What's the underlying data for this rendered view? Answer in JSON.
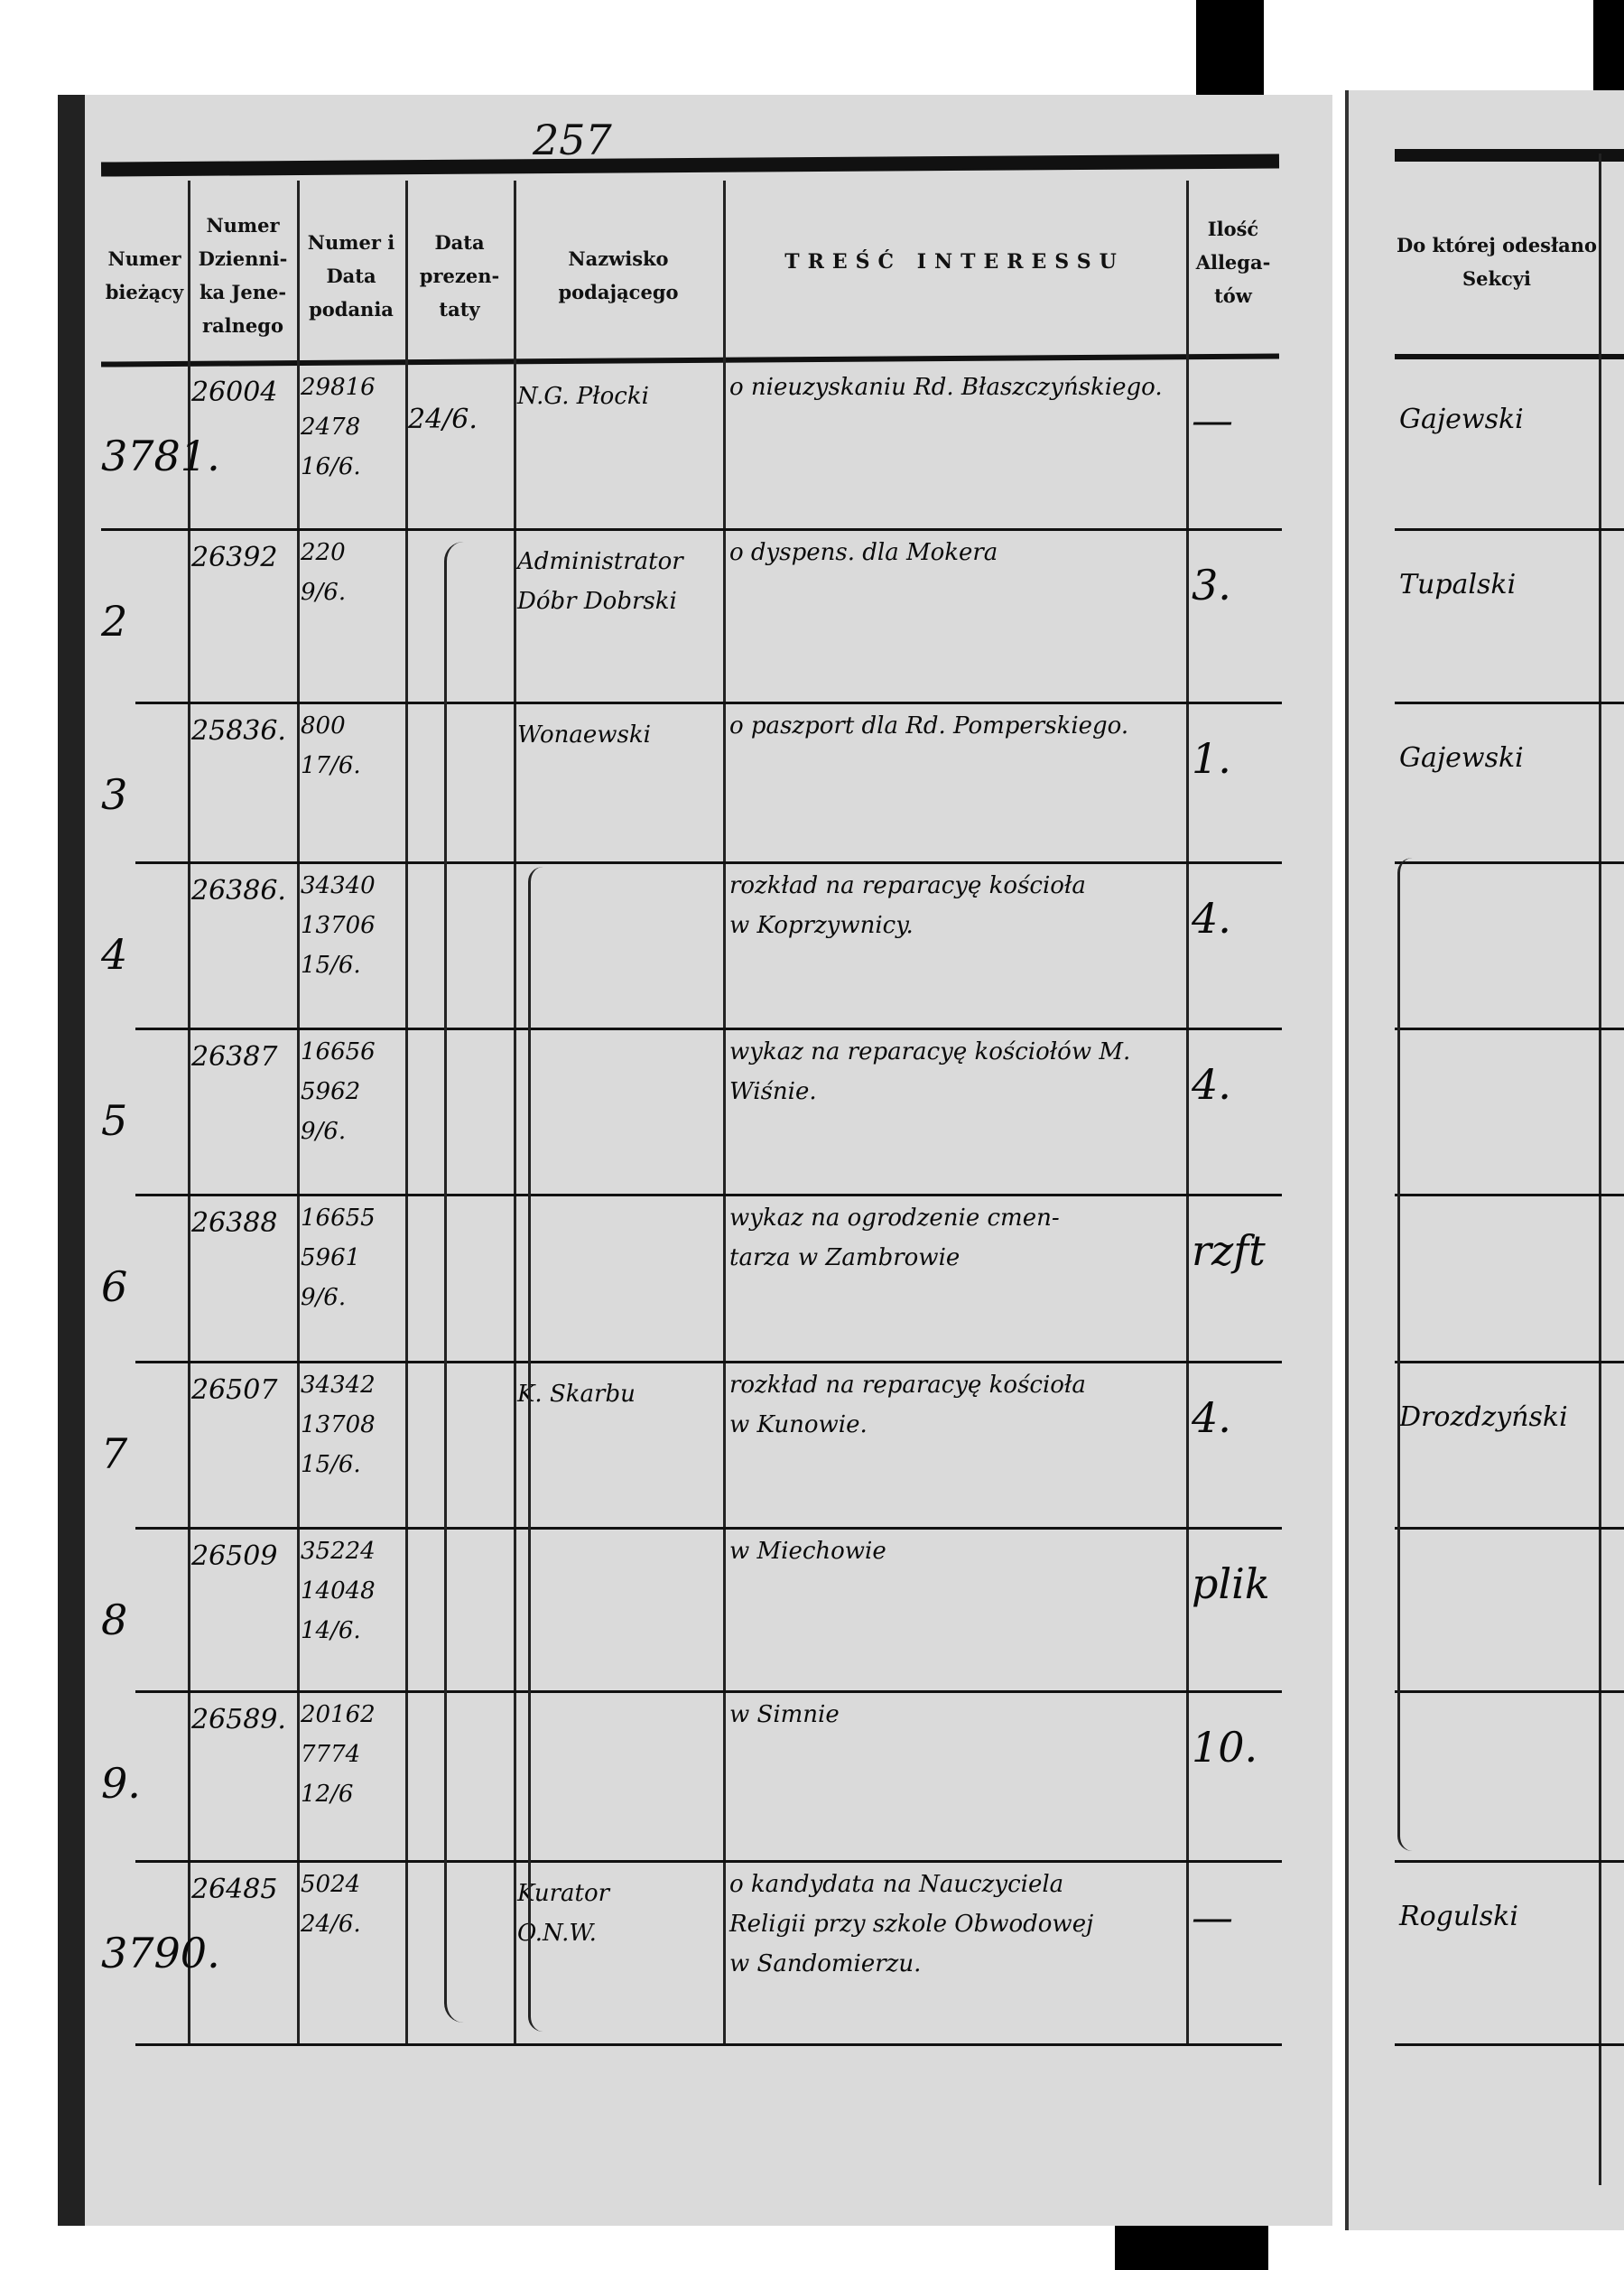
{
  "page_number": "257",
  "headers": {
    "numer_biezacy": "Numer bieżący",
    "numer_dziennika": "Numer Dzienni-ka Jene-ralnego",
    "numer_i_data": "Numer i Data podania",
    "data_prezentaty": "Data prezen-taty",
    "nazwisko": "Nazwisko podającego",
    "tresc": "TREŚĆ INTERESSU",
    "ilosc_allegatow": "Ilość Allega-tów",
    "sekcja": "Do której odesłano Sekcyi"
  },
  "rows": [
    {
      "no": "3781.",
      "journal": "26004",
      "num_date": "29816\n2478\n16/6.",
      "presented": "24/6.",
      "name": "N.G. Płocki",
      "content": "o nieuzyskaniu Rd. Błaszczyńskiego.",
      "allegations": "—",
      "section": "Gajewski"
    },
    {
      "no": "2",
      "journal": "26392",
      "num_date": "220\n9/6.",
      "presented": "",
      "name": "Administrator\nDóbr Dobrski",
      "content": "o dyspens. dla Mokera",
      "allegations": "3.",
      "section": "Tupalski"
    },
    {
      "no": "3",
      "journal": "25836.",
      "num_date": "800\n17/6.",
      "presented": "",
      "name": "Wonaewski",
      "content": "o paszport dla Rd. Pomperskiego.",
      "allegations": "1.",
      "section": "Gajewski"
    },
    {
      "no": "4",
      "journal": "26386.",
      "num_date": "34340\n13706\n15/6.",
      "presented": "",
      "name": "",
      "content": "rozkład na reparacyę kościoła\nw Koprzywnicy.",
      "allegations": "4.",
      "section": ""
    },
    {
      "no": "5",
      "journal": "26387",
      "num_date": "16656\n5962\n9/6.",
      "presented": "",
      "name": "",
      "content": "wykaz na reparacyę kościołów M. Wiśnie.",
      "allegations": "4.",
      "section": ""
    },
    {
      "no": "6",
      "journal": "26388",
      "num_date": "16655\n5961\n9/6.",
      "presented": "",
      "name": "",
      "content": "wykaz na ogrodzenie cmen-\ntarza w Zambrowie",
      "allegations": "rzft",
      "section": ""
    },
    {
      "no": "7",
      "journal": "26507",
      "num_date": "34342\n13708\n15/6.",
      "presented": "",
      "name": "K. Skarbu",
      "content": "rozkład na reparacyę kościoła\nw Kunowie.",
      "allegations": "4.",
      "section": "Drozdzyński"
    },
    {
      "no": "8",
      "journal": "26509",
      "num_date": "35224\n14048\n14/6.",
      "presented": "",
      "name": "",
      "content": "w Miechowie",
      "allegations": "plik",
      "section": ""
    },
    {
      "no": "9.",
      "journal": "26589.",
      "num_date": "20162\n7774\n12/6",
      "presented": "",
      "name": "",
      "content": "w Simnie",
      "allegations": "10.",
      "section": ""
    },
    {
      "no": "3790.",
      "journal": "26485",
      "num_date": "5024\n24/6.",
      "presented": "",
      "name": "Kurator\nO.N.W.",
      "content": "o kandydata na Nauczyciela\nReligii przy szkole Obwodowej\nw Sandomierzu.",
      "allegations": "—",
      "section": "Rogulski"
    }
  ],
  "colors": {
    "paper": "#dadada",
    "ink": "#0a0a0a"
  }
}
